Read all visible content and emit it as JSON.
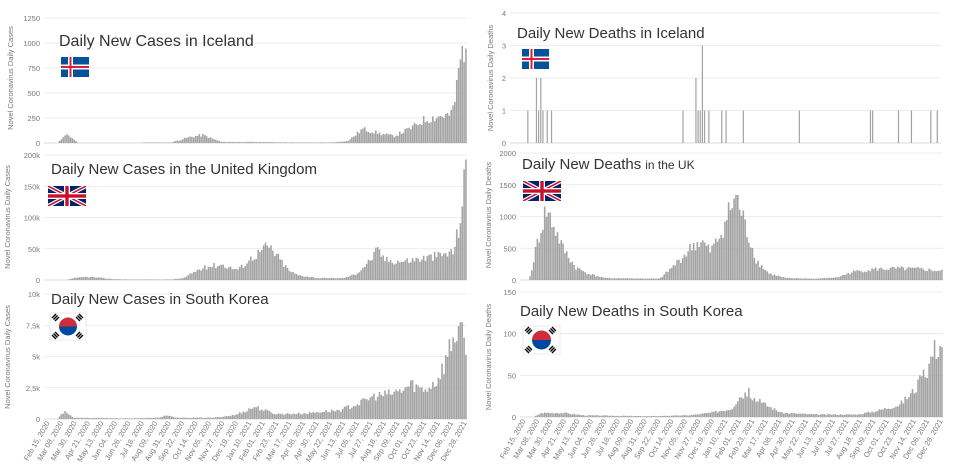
{
  "colors": {
    "bar": "#a3a3a3",
    "grid": "#e6e6e6",
    "axis": "#cfcfcf",
    "tick_text": "#7a7a7a",
    "title": "#333333"
  },
  "x_tick_labels": [
    "Feb 15, 2020",
    "Mar 08, 2020",
    "Mar 30, 2020",
    "Apr 21, 2020",
    "May 13, 2020",
    "Jun 04, 2020",
    "Jun 26, 2020",
    "Jul 18, 2020",
    "Aug 09, 2020",
    "Aug 31, 2020",
    "Sep 22, 2020",
    "Oct 14, 2020",
    "Nov 05, 2020",
    "Nov 27, 2020",
    "Dec 19, 2020",
    "Jan 10, 2021",
    "Feb 01, 2021",
    "Feb 23, 2021",
    "Mar 17, 2021",
    "Apr 08, 2021",
    "Apr 30, 2021",
    "May 22, 2021",
    "Jun 13, 2021",
    "Jul 05, 2021",
    "Jul 27, 2021",
    "Aug 18, 2021",
    "Sep 09, 2021",
    "Oct 01, 2021",
    "Oct 23, 2021",
    "Nov 14, 2021",
    "Dec 06, 2021",
    "Dec 28, 2021"
  ],
  "chart_data": [
    {
      "type": "bar",
      "title": "Daily New Cases in Iceland",
      "flag": "iceland-flag",
      "ylabel": "Novel Coronavirus Daily Cases",
      "ylim": [
        0,
        1250
      ],
      "yticks": [
        0,
        250,
        500,
        750,
        1000,
        1250
      ],
      "ytick_labels": [
        "0",
        "250",
        "500",
        "750",
        "1000",
        "1250"
      ],
      "profile": [
        [
          0,
          0
        ],
        [
          0.03,
          0
        ],
        [
          0.045,
          60
        ],
        [
          0.055,
          80
        ],
        [
          0.065,
          50
        ],
        [
          0.08,
          0
        ],
        [
          0.22,
          0
        ],
        [
          0.235,
          5
        ],
        [
          0.3,
          5
        ],
        [
          0.345,
          60
        ],
        [
          0.375,
          80
        ],
        [
          0.4,
          40
        ],
        [
          0.42,
          10
        ],
        [
          0.5,
          10
        ],
        [
          0.6,
          5
        ],
        [
          0.68,
          5
        ],
        [
          0.72,
          20
        ],
        [
          0.755,
          140
        ],
        [
          0.775,
          120
        ],
        [
          0.8,
          90
        ],
        [
          0.83,
          70
        ],
        [
          0.87,
          150
        ],
        [
          0.9,
          230
        ],
        [
          0.94,
          270
        ],
        [
          0.965,
          280
        ],
        [
          0.975,
          450
        ],
        [
          0.985,
          800
        ],
        [
          1.0,
          1050
        ]
      ]
    },
    {
      "type": "bar",
      "title": "Daily New Deaths in Iceland",
      "flag": "iceland-flag",
      "ylabel": "Novel Coronavirus Daily Deaths",
      "ylim": [
        0,
        4
      ],
      "yticks": [
        0,
        1,
        2,
        3,
        4
      ],
      "ytick_labels": [
        "0",
        "1",
        "2",
        "3",
        "4"
      ],
      "events": [
        [
          0.04,
          1
        ],
        [
          0.06,
          2
        ],
        [
          0.065,
          1
        ],
        [
          0.07,
          2
        ],
        [
          0.075,
          1
        ],
        [
          0.085,
          1
        ],
        [
          0.095,
          1
        ],
        [
          0.4,
          1
        ],
        [
          0.43,
          2
        ],
        [
          0.435,
          1
        ],
        [
          0.44,
          1
        ],
        [
          0.445,
          3
        ],
        [
          0.45,
          1
        ],
        [
          0.46,
          1
        ],
        [
          0.49,
          1
        ],
        [
          0.5,
          1
        ],
        [
          0.54,
          1
        ],
        [
          0.67,
          1
        ],
        [
          0.835,
          1
        ],
        [
          0.84,
          1
        ],
        [
          0.9,
          1
        ],
        [
          0.93,
          1
        ],
        [
          0.975,
          1
        ],
        [
          0.99,
          1
        ]
      ]
    },
    {
      "type": "bar",
      "title": "Daily New Cases in the United Kingdom",
      "flag": "uk-flag",
      "ylabel": "Novel Coronavirus Daily Cases",
      "ylim": [
        0,
        200000
      ],
      "yticks": [
        0,
        50000,
        100000,
        150000,
        200000
      ],
      "ytick_labels": [
        "0",
        "50k",
        "100k",
        "150k",
        "200k"
      ],
      "profile": [
        [
          0,
          0
        ],
        [
          0.05,
          0
        ],
        [
          0.07,
          3000
        ],
        [
          0.1,
          5000
        ],
        [
          0.13,
          3500
        ],
        [
          0.16,
          1500
        ],
        [
          0.2,
          800
        ],
        [
          0.3,
          800
        ],
        [
          0.33,
          3000
        ],
        [
          0.36,
          15000
        ],
        [
          0.39,
          22000
        ],
        [
          0.42,
          25000
        ],
        [
          0.44,
          20000
        ],
        [
          0.46,
          17000
        ],
        [
          0.49,
          35000
        ],
        [
          0.53,
          55000
        ],
        [
          0.55,
          40000
        ],
        [
          0.58,
          15000
        ],
        [
          0.6,
          8000
        ],
        [
          0.65,
          3000
        ],
        [
          0.71,
          3000
        ],
        [
          0.74,
          10000
        ],
        [
          0.77,
          30000
        ],
        [
          0.79,
          48000
        ],
        [
          0.81,
          32000
        ],
        [
          0.85,
          30000
        ],
        [
          0.9,
          35000
        ],
        [
          0.94,
          40000
        ],
        [
          0.97,
          45000
        ],
        [
          0.985,
          90000
        ],
        [
          1.0,
          180000
        ]
      ]
    },
    {
      "type": "bar",
      "title": "Daily New Deaths in the UK",
      "flag": "uk-flag",
      "ylabel": "Novel Coronavirus Daily Deaths",
      "ylim": [
        0,
        2000
      ],
      "yticks": [
        0,
        500,
        1000,
        1500,
        2000
      ],
      "ytick_labels": [
        "0",
        "500",
        "1000",
        "1500",
        "2000"
      ],
      "profile": [
        [
          0,
          0
        ],
        [
          0.02,
          0
        ],
        [
          0.04,
          600
        ],
        [
          0.06,
          1100
        ],
        [
          0.075,
          900
        ],
        [
          0.1,
          500
        ],
        [
          0.13,
          200
        ],
        [
          0.16,
          100
        ],
        [
          0.2,
          30
        ],
        [
          0.33,
          20
        ],
        [
          0.36,
          200
        ],
        [
          0.39,
          400
        ],
        [
          0.41,
          550
        ],
        [
          0.43,
          600
        ],
        [
          0.45,
          450
        ],
        [
          0.47,
          650
        ],
        [
          0.49,
          1000
        ],
        [
          0.51,
          1300
        ],
        [
          0.52,
          1150
        ],
        [
          0.535,
          800
        ],
        [
          0.56,
          300
        ],
        [
          0.59,
          100
        ],
        [
          0.63,
          30
        ],
        [
          0.7,
          20
        ],
        [
          0.75,
          40
        ],
        [
          0.79,
          130
        ],
        [
          0.84,
          170
        ],
        [
          0.9,
          180
        ],
        [
          0.95,
          170
        ],
        [
          1.0,
          140
        ]
      ]
    },
    {
      "type": "bar",
      "title": "Daily New Cases in South Korea",
      "flag": "south-korea-flag",
      "ylabel": "Novel Coronavirus Daily Cases",
      "ylim": [
        0,
        10000
      ],
      "yticks": [
        0,
        2500,
        5000,
        7500,
        10000
      ],
      "ytick_labels": [
        "0",
        "2,5k",
        "5k",
        "7,5k",
        "10k"
      ],
      "profile": [
        [
          0,
          0
        ],
        [
          0.03,
          0
        ],
        [
          0.04,
          400
        ],
        [
          0.05,
          700
        ],
        [
          0.06,
          300
        ],
        [
          0.07,
          100
        ],
        [
          0.2,
          50
        ],
        [
          0.27,
          100
        ],
        [
          0.29,
          300
        ],
        [
          0.31,
          100
        ],
        [
          0.4,
          100
        ],
        [
          0.45,
          300
        ],
        [
          0.48,
          700
        ],
        [
          0.5,
          1000
        ],
        [
          0.52,
          700
        ],
        [
          0.55,
          400
        ],
        [
          0.62,
          450
        ],
        [
          0.66,
          600
        ],
        [
          0.7,
          700
        ],
        [
          0.75,
          1300
        ],
        [
          0.78,
          1800
        ],
        [
          0.82,
          2000
        ],
        [
          0.85,
          2300
        ],
        [
          0.87,
          2800
        ],
        [
          0.9,
          2300
        ],
        [
          0.93,
          3000
        ],
        [
          0.95,
          4500
        ],
        [
          0.97,
          6500
        ],
        [
          0.985,
          7500
        ],
        [
          1.0,
          5000
        ]
      ]
    },
    {
      "type": "bar",
      "title": "Daily New Deaths in South Korea",
      "flag": "south-korea-flag",
      "ylabel": "Novel Coronavirus Daily Deaths",
      "ylim": [
        0,
        150
      ],
      "yticks": [
        0,
        50,
        100,
        150
      ],
      "ytick_labels": [
        "0",
        "50",
        "100",
        "150"
      ],
      "profile": [
        [
          0,
          0
        ],
        [
          0.03,
          0
        ],
        [
          0.05,
          5
        ],
        [
          0.1,
          5
        ],
        [
          0.15,
          2
        ],
        [
          0.3,
          1
        ],
        [
          0.4,
          2
        ],
        [
          0.45,
          5
        ],
        [
          0.5,
          10
        ],
        [
          0.52,
          25
        ],
        [
          0.54,
          30
        ],
        [
          0.56,
          20
        ],
        [
          0.58,
          15
        ],
        [
          0.62,
          5
        ],
        [
          0.7,
          3
        ],
        [
          0.8,
          3
        ],
        [
          0.85,
          8
        ],
        [
          0.9,
          15
        ],
        [
          0.93,
          30
        ],
        [
          0.96,
          50
        ],
        [
          0.98,
          80
        ],
        [
          1.0,
          90
        ]
      ]
    }
  ]
}
